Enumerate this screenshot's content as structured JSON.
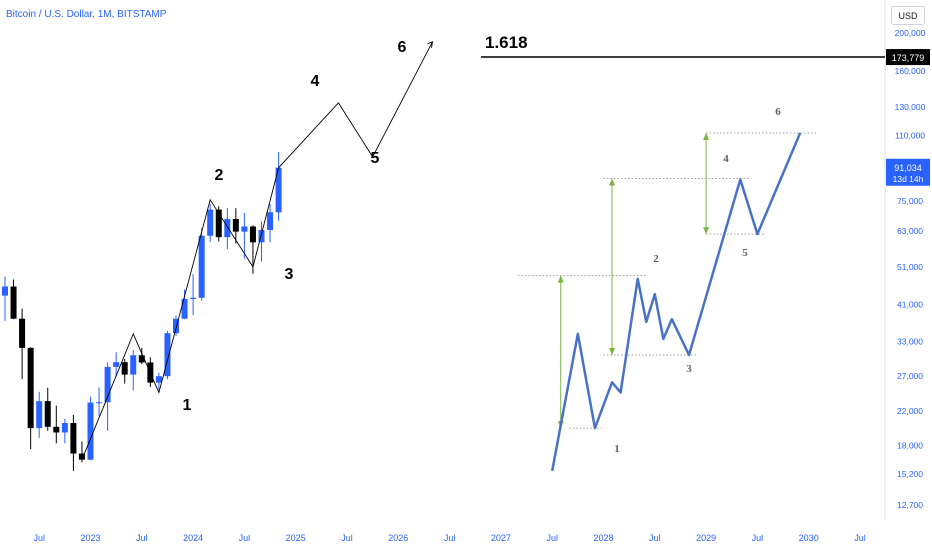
{
  "header": {
    "title": "Bitcoin / U.S. Dollar, 1M, BITSTAMP",
    "currency_button": "USD"
  },
  "colors": {
    "up": "#2962ff",
    "down": "#000000",
    "axis_text": "#2962ff",
    "wave_line": "#4a72c4",
    "measure_arrow": "#7cb342",
    "fib_line": "#000000"
  },
  "chart_data": {
    "type": "candlestick",
    "title": "Bitcoin / U.S. Dollar, 1M, BITSTAMP",
    "y_scale": "log",
    "y_ticks": [
      "200,000",
      "160,000",
      "130,000",
      "110,000",
      "75,000",
      "63,000",
      "51,000",
      "41,000",
      "33,000",
      "27,000",
      "22,000",
      "18,000",
      "15,200",
      "12,700"
    ],
    "x_ticks": [
      "Jul",
      "2023",
      "Jul",
      "2024",
      "Jul",
      "2025",
      "Jul",
      "2026",
      "Jul",
      "2027",
      "Jul",
      "2028",
      "Jul",
      "2029",
      "Jul",
      "2030",
      "Jul"
    ],
    "price_labels": {
      "fib_level": "173,779",
      "current_price": "91,034",
      "countdown": "13d 14h"
    },
    "fib_annotation": "1.618",
    "candles": [
      {
        "t": "2022-03",
        "o": 43150,
        "h": 48200,
        "l": 37200,
        "c": 45500
      },
      {
        "t": "2022-04",
        "o": 45500,
        "h": 47400,
        "l": 37600,
        "c": 37700
      },
      {
        "t": "2022-05",
        "o": 37700,
        "h": 40000,
        "l": 26500,
        "c": 31800
      },
      {
        "t": "2022-06",
        "o": 31800,
        "h": 31900,
        "l": 17600,
        "c": 19900
      },
      {
        "t": "2022-07",
        "o": 19900,
        "h": 24600,
        "l": 18800,
        "c": 23300
      },
      {
        "t": "2022-08",
        "o": 23300,
        "h": 25200,
        "l": 19600,
        "c": 20050
      },
      {
        "t": "2022-09",
        "o": 20050,
        "h": 22700,
        "l": 18200,
        "c": 19400
      },
      {
        "t": "2022-10",
        "o": 19400,
        "h": 21000,
        "l": 18200,
        "c": 20500
      },
      {
        "t": "2022-11",
        "o": 20500,
        "h": 21500,
        "l": 15500,
        "c": 17150
      },
      {
        "t": "2022-12",
        "o": 17150,
        "h": 18400,
        "l": 16300,
        "c": 16550
      },
      {
        "t": "2023-01",
        "o": 16550,
        "h": 23900,
        "l": 16500,
        "c": 23100
      },
      {
        "t": "2023-02",
        "o": 23100,
        "h": 25250,
        "l": 21400,
        "c": 23150
      },
      {
        "t": "2023-03",
        "o": 23150,
        "h": 29200,
        "l": 19600,
        "c": 28450
      },
      {
        "t": "2023-04",
        "o": 28450,
        "h": 31000,
        "l": 26800,
        "c": 29250
      },
      {
        "t": "2023-05",
        "o": 29250,
        "h": 29800,
        "l": 25800,
        "c": 27200
      },
      {
        "t": "2023-06",
        "o": 27200,
        "h": 31400,
        "l": 24800,
        "c": 30450
      },
      {
        "t": "2023-07",
        "o": 30450,
        "h": 31800,
        "l": 28900,
        "c": 29200
      },
      {
        "t": "2023-08",
        "o": 29200,
        "h": 30100,
        "l": 25300,
        "c": 25950
      },
      {
        "t": "2023-09",
        "o": 25950,
        "h": 27500,
        "l": 24900,
        "c": 26950
      },
      {
        "t": "2023-10",
        "o": 26950,
        "h": 35100,
        "l": 26500,
        "c": 34650
      },
      {
        "t": "2023-11",
        "o": 34650,
        "h": 38400,
        "l": 34100,
        "c": 37700
      },
      {
        "t": "2023-12",
        "o": 37700,
        "h": 44700,
        "l": 37600,
        "c": 42300
      },
      {
        "t": "2024-01",
        "o": 42300,
        "h": 48900,
        "l": 38500,
        "c": 42600
      },
      {
        "t": "2024-02",
        "o": 42600,
        "h": 64000,
        "l": 41900,
        "c": 61200
      },
      {
        "t": "2024-03",
        "o": 61200,
        "h": 73800,
        "l": 59000,
        "c": 71300
      },
      {
        "t": "2024-04",
        "o": 71300,
        "h": 72700,
        "l": 59200,
        "c": 60700
      },
      {
        "t": "2024-05",
        "o": 60700,
        "h": 71900,
        "l": 56600,
        "c": 67500
      },
      {
        "t": "2024-06",
        "o": 67500,
        "h": 71900,
        "l": 58500,
        "c": 62700
      },
      {
        "t": "2024-07",
        "o": 62700,
        "h": 70000,
        "l": 53500,
        "c": 64600
      },
      {
        "t": "2024-08",
        "o": 64600,
        "h": 65100,
        "l": 49000,
        "c": 58900
      },
      {
        "t": "2024-09",
        "o": 58900,
        "h": 66500,
        "l": 52600,
        "c": 63300
      },
      {
        "t": "2024-10",
        "o": 63300,
        "h": 73600,
        "l": 58900,
        "c": 70200
      },
      {
        "t": "2024-11",
        "o": 70200,
        "h": 99800,
        "l": 66800,
        "c": 91034
      }
    ],
    "projection_path": [
      {
        "t": "2024-11",
        "v": 91034
      },
      {
        "t": "2025-06",
        "v": 133000
      },
      {
        "t": "2025-10",
        "v": 97000
      },
      {
        "t": "2026-05",
        "v": 190000
      }
    ],
    "projection_labels": [
      "1",
      "2",
      "3",
      "4",
      "5",
      "6"
    ],
    "fractal_path": [
      {
        "t": "2027-07",
        "v": 15500
      },
      {
        "t": "2027-10",
        "v": 34500
      },
      {
        "t": "2027-12",
        "v": 19900
      },
      {
        "t": "2028-02",
        "v": 26000
      },
      {
        "t": "2028-03",
        "v": 24500
      },
      {
        "t": "2028-05",
        "v": 47600
      },
      {
        "t": "2028-06",
        "v": 37000
      },
      {
        "t": "2028-07",
        "v": 43500
      },
      {
        "t": "2028-08",
        "v": 33500
      },
      {
        "t": "2028-09",
        "v": 37600
      },
      {
        "t": "2028-11",
        "v": 30500
      },
      {
        "t": "2029-05",
        "v": 85000
      },
      {
        "t": "2029-07",
        "v": 61800
      },
      {
        "t": "2029-12",
        "v": 111500
      }
    ],
    "fractal_labels": [
      "1",
      "2",
      "3",
      "4",
      "5",
      "6"
    ],
    "levels": [
      {
        "v": 19900,
        "from": "2027-09",
        "to": "2028-01"
      },
      {
        "v": 48500,
        "from": "2027-03",
        "to": "2028-06"
      },
      {
        "v": 30500,
        "from": "2028-01",
        "to": "2028-12"
      },
      {
        "v": 85500,
        "from": "2028-01",
        "to": "2029-06"
      },
      {
        "v": 61800,
        "from": "2029-01",
        "to": "2029-08"
      },
      {
        "v": 111500,
        "from": "2029-01",
        "to": "2030-02"
      }
    ],
    "measure_arrows": [
      {
        "t": "2027-08",
        "from": 19900,
        "to": 48500
      },
      {
        "t": "2028-02",
        "from": 30500,
        "to": 85500
      },
      {
        "t": "2029-01",
        "from": 61800,
        "to": 111500
      }
    ]
  }
}
